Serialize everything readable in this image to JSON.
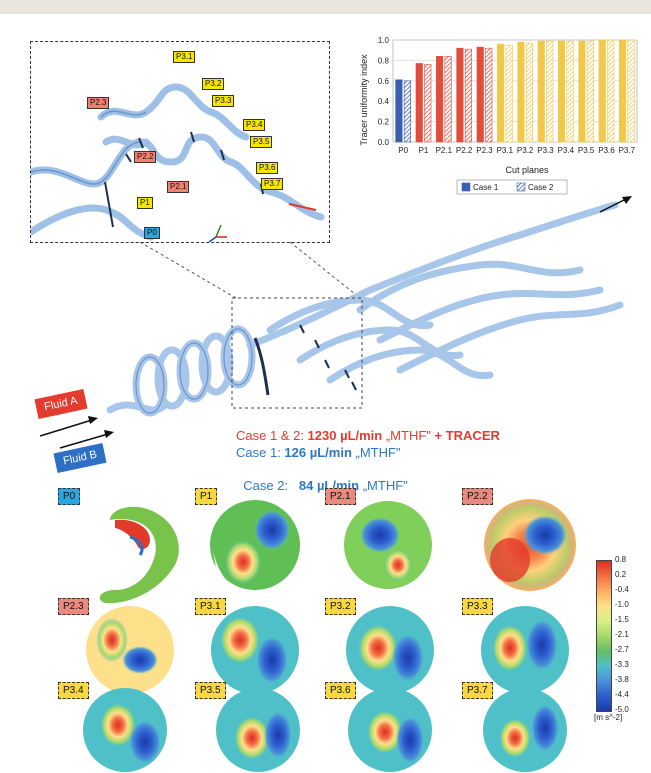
{
  "inset": {
    "labels": [
      {
        "text": "P3.1",
        "cls": "y",
        "x": 142,
        "y": 9
      },
      {
        "text": "P2.3",
        "cls": "r",
        "x": 56,
        "y": 55
      },
      {
        "text": "P3.2",
        "cls": "y",
        "x": 171,
        "y": 36
      },
      {
        "text": "P3.3",
        "cls": "y",
        "x": 181,
        "y": 53
      },
      {
        "text": "P3.4",
        "cls": "y",
        "x": 212,
        "y": 77
      },
      {
        "text": "P3.5",
        "cls": "y",
        "x": 219,
        "y": 94
      },
      {
        "text": "P2.2",
        "cls": "r",
        "x": 103,
        "y": 109
      },
      {
        "text": "P2.1",
        "cls": "r",
        "x": 136,
        "y": 139
      },
      {
        "text": "P3.6",
        "cls": "y",
        "x": 225,
        "y": 120
      },
      {
        "text": "P3.7",
        "cls": "y",
        "x": 230,
        "y": 136
      },
      {
        "text": "P1",
        "cls": "y",
        "x": 106,
        "y": 155
      },
      {
        "text": "P0",
        "cls": "b",
        "x": 113,
        "y": 185
      }
    ]
  },
  "chart_data": {
    "type": "bar",
    "categories": [
      "P0",
      "P1",
      "P2.1",
      "P2.2",
      "P2.3",
      "P3.1",
      "P3.2",
      "P3.3",
      "P3.4",
      "P3.5",
      "P3.6",
      "P3.7"
    ],
    "series": [
      {
        "name": "Case 1",
        "values": [
          0.61,
          0.77,
          0.84,
          0.92,
          0.93,
          0.96,
          0.98,
          0.99,
          0.99,
          0.99,
          1.0,
          1.0
        ]
      },
      {
        "name": "Case 2",
        "values": [
          0.6,
          0.76,
          0.84,
          0.91,
          0.92,
          0.95,
          0.97,
          0.99,
          0.99,
          0.99,
          1.0,
          1.0
        ]
      }
    ],
    "bar_colors": [
      "#3a5fb0",
      "#e34d3c",
      "#e34d3c",
      "#e34d3c",
      "#e34d3c",
      "#f2c84b",
      "#f2c84b",
      "#f2c84b",
      "#f2c84b",
      "#f2c84b",
      "#f2c84b",
      "#f2c84b"
    ],
    "ylabel": "Tracer uniformity index",
    "xlabel": "Cut planes",
    "ylim": [
      0,
      1.0
    ],
    "yticks": [
      "0.0",
      "0.2",
      "0.4",
      "0.6",
      "0.8",
      "1.0"
    ],
    "legend_position": "bottom"
  },
  "fluids": {
    "a": "Fluid A",
    "b": "Fluid B"
  },
  "cases": {
    "line1_prefix": "Case 1 & 2: ",
    "line1_value": "1230 µL/min",
    "line1_mid": " „MTHF\" ",
    "line1_suffix": "+ TRACER",
    "line2_prefix": "Case 1: ",
    "line2_value": "126 µL/min",
    "line2_suffix": " „MTHF\"",
    "line3_prefix": "Case 2:   ",
    "line3_value": "84 µL/min",
    "line3_suffix": " „MTHF\""
  },
  "contours": [
    {
      "label": "P0",
      "cls": "b"
    },
    {
      "label": "P1",
      "cls": "y"
    },
    {
      "label": "P2.1",
      "cls": "r"
    },
    {
      "label": "P2.2",
      "cls": "r"
    },
    {
      "label": "P2.3",
      "cls": "r"
    },
    {
      "label": "P3.1",
      "cls": "y"
    },
    {
      "label": "P3.2",
      "cls": "y"
    },
    {
      "label": "P3.3",
      "cls": "y"
    },
    {
      "label": "P3.4",
      "cls": "y"
    },
    {
      "label": "P3.5",
      "cls": "y"
    },
    {
      "label": "P3.6",
      "cls": "y"
    },
    {
      "label": "P3.7",
      "cls": "y"
    }
  ],
  "colorbar": {
    "ticks": [
      "0.8",
      "0.2",
      "-0.4",
      "-1.0",
      "-1.5",
      "-2.1",
      "-2.7",
      "-3.3",
      "-3.8",
      "-4.4",
      "-5.0"
    ],
    "unit": "[m s^-2]",
    "colors": [
      "#d7301f",
      "#4a90d9",
      "#1a3aa8",
      "#f7d840",
      "#e88a80",
      "#2aa6e0"
    ]
  }
}
